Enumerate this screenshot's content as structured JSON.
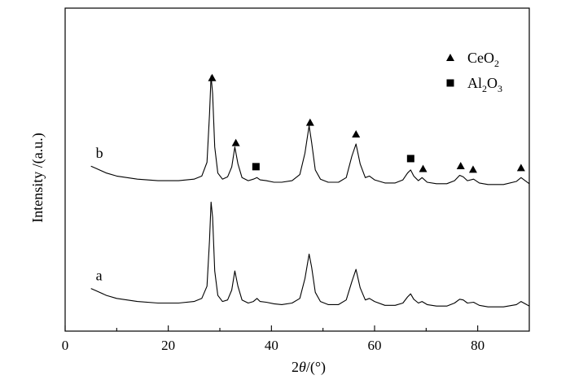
{
  "chart_data": {
    "type": "line",
    "title": "",
    "xlabel": "2θ/(°)",
    "ylabel": "Intensity /(a.u.)",
    "xlim": [
      0,
      90
    ],
    "xticks": [
      0,
      20,
      40,
      60,
      80
    ],
    "xtick_labels": [
      "0",
      "20",
      "40",
      "60",
      "80"
    ],
    "y_ticks_shown": false,
    "grid": false,
    "legend_placement": "top-right",
    "legend": [
      {
        "marker": "triangle",
        "base": "CeO",
        "sub": "2",
        "label": "CeO2"
      },
      {
        "marker": "square",
        "base": "Al",
        "sub": "2",
        "base2": "O",
        "sub2": "3",
        "label": "Al2O3"
      }
    ],
    "series": [
      {
        "name": "a",
        "baseline_offset": 0,
        "points": [
          [
            5,
            27
          ],
          [
            6,
            24
          ],
          [
            8,
            18
          ],
          [
            10,
            14
          ],
          [
            14,
            10
          ],
          [
            18,
            8
          ],
          [
            22,
            8
          ],
          [
            25,
            10
          ],
          [
            26.5,
            14
          ],
          [
            27.5,
            30
          ],
          [
            28.0,
            90
          ],
          [
            28.3,
            140
          ],
          [
            28.6,
            120
          ],
          [
            29.0,
            50
          ],
          [
            29.6,
            18
          ],
          [
            30.5,
            10
          ],
          [
            31.5,
            12
          ],
          [
            32.3,
            25
          ],
          [
            32.9,
            50
          ],
          [
            33.5,
            30
          ],
          [
            34.3,
            12
          ],
          [
            35.5,
            8
          ],
          [
            36.5,
            10
          ],
          [
            37.2,
            14
          ],
          [
            37.8,
            10
          ],
          [
            39.0,
            9
          ],
          [
            40.5,
            7
          ],
          [
            42,
            6
          ],
          [
            44,
            8
          ],
          [
            45.5,
            14
          ],
          [
            46.5,
            40
          ],
          [
            47.3,
            72
          ],
          [
            47.8,
            55
          ],
          [
            48.5,
            22
          ],
          [
            49.5,
            10
          ],
          [
            51,
            6
          ],
          [
            53,
            6
          ],
          [
            54.5,
            12
          ],
          [
            55.6,
            36
          ],
          [
            56.4,
            52
          ],
          [
            57.2,
            28
          ],
          [
            58.2,
            12
          ],
          [
            59,
            14
          ],
          [
            60,
            10
          ],
          [
            62,
            5
          ],
          [
            64,
            5
          ],
          [
            65.5,
            8
          ],
          [
            66.4,
            16
          ],
          [
            67.0,
            20
          ],
          [
            67.6,
            13
          ],
          [
            68.5,
            8
          ],
          [
            69.2,
            10
          ],
          [
            70.2,
            6
          ],
          [
            72,
            4
          ],
          [
            74,
            4
          ],
          [
            75.5,
            8
          ],
          [
            76.5,
            13
          ],
          [
            77.2,
            12
          ],
          [
            78,
            8
          ],
          [
            79.2,
            9
          ],
          [
            80.3,
            5
          ],
          [
            82,
            3
          ],
          [
            85,
            3
          ],
          [
            87.5,
            6
          ],
          [
            88.4,
            10
          ],
          [
            89.2,
            7
          ],
          [
            90,
            4
          ]
        ]
      },
      {
        "name": "b",
        "baseline_offset": 160,
        "points": [
          [
            5,
            27
          ],
          [
            6,
            24
          ],
          [
            8,
            18
          ],
          [
            10,
            14
          ],
          [
            14,
            10
          ],
          [
            18,
            8
          ],
          [
            22,
            8
          ],
          [
            25,
            10
          ],
          [
            26.5,
            14
          ],
          [
            27.5,
            32
          ],
          [
            28.0,
            95
          ],
          [
            28.3,
            145
          ],
          [
            28.6,
            122
          ],
          [
            29.0,
            52
          ],
          [
            29.6,
            18
          ],
          [
            30.5,
            10
          ],
          [
            31.5,
            13
          ],
          [
            32.3,
            26
          ],
          [
            32.9,
            52
          ],
          [
            33.5,
            30
          ],
          [
            34.3,
            12
          ],
          [
            35.5,
            8
          ],
          [
            36.5,
            10
          ],
          [
            37.2,
            12
          ],
          [
            37.8,
            9
          ],
          [
            39.0,
            8
          ],
          [
            40.5,
            6
          ],
          [
            42,
            6
          ],
          [
            44,
            8
          ],
          [
            45.5,
            16
          ],
          [
            46.5,
            44
          ],
          [
            47.3,
            80
          ],
          [
            47.8,
            58
          ],
          [
            48.5,
            22
          ],
          [
            49.5,
            10
          ],
          [
            51,
            6
          ],
          [
            53,
            6
          ],
          [
            54.5,
            12
          ],
          [
            55.6,
            40
          ],
          [
            56.4,
            56
          ],
          [
            57.2,
            30
          ],
          [
            58.2,
            12
          ],
          [
            59,
            14
          ],
          [
            60,
            9
          ],
          [
            62,
            5
          ],
          [
            64,
            5
          ],
          [
            65.5,
            9
          ],
          [
            66.4,
            18
          ],
          [
            67.0,
            22
          ],
          [
            67.6,
            14
          ],
          [
            68.5,
            8
          ],
          [
            69.2,
            12
          ],
          [
            70.2,
            6
          ],
          [
            72,
            4
          ],
          [
            74,
            4
          ],
          [
            75.5,
            8
          ],
          [
            76.5,
            15
          ],
          [
            77.2,
            13
          ],
          [
            78,
            8
          ],
          [
            79.2,
            10
          ],
          [
            80.3,
            5
          ],
          [
            82,
            3
          ],
          [
            85,
            3
          ],
          [
            87.5,
            7
          ],
          [
            88.4,
            12
          ],
          [
            89.2,
            8
          ],
          [
            90,
            4
          ]
        ]
      }
    ],
    "markers": {
      "series": "b",
      "CeO2_2theta": [
        28.5,
        33.1,
        47.5,
        56.4,
        69.4,
        76.7,
        79.1,
        88.4
      ],
      "Al2O3_2theta": [
        37.0,
        67.0
      ]
    }
  }
}
